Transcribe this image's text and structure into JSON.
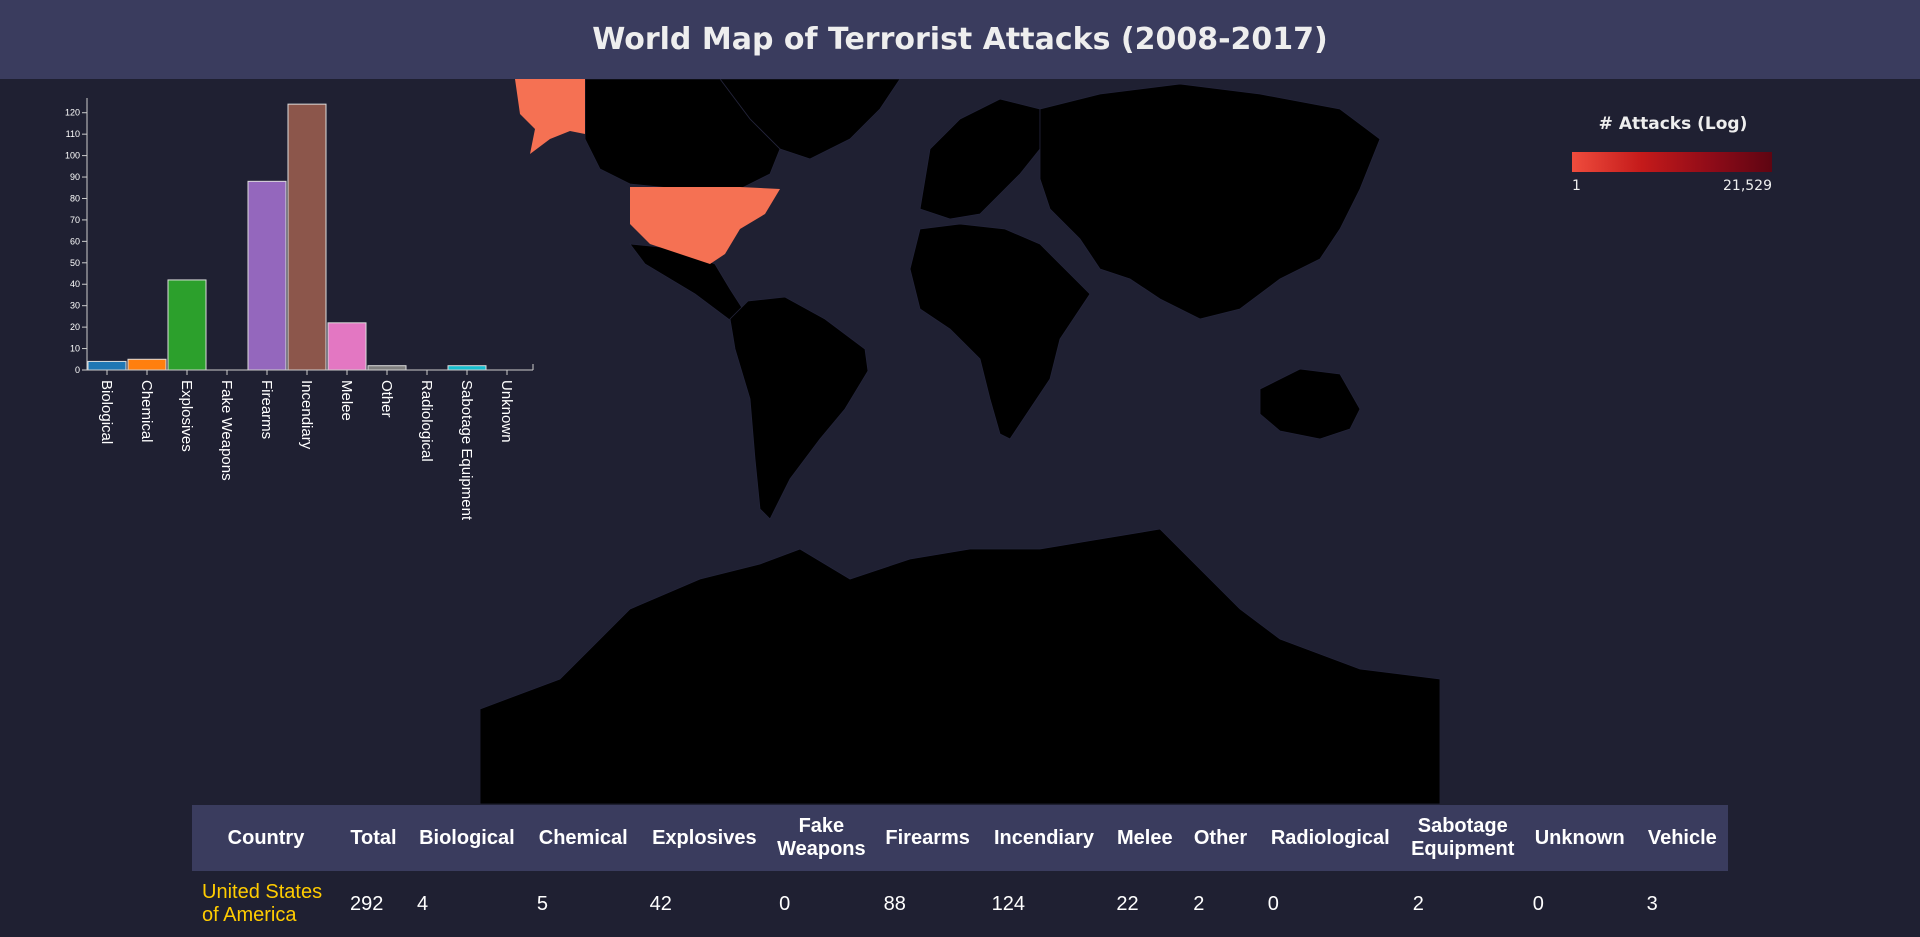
{
  "header": {
    "title": "World Map of Terrorist Attacks (2008-2017)"
  },
  "legend": {
    "title": "# Attacks (Log)",
    "min_label": "1",
    "max_label": "21,529",
    "colors": [
      "#ef4c3d",
      "#c41a1a",
      "#8e0b18",
      "#5e0512"
    ]
  },
  "map": {
    "land_color": "#000000",
    "highlight_color": "#f57153",
    "highlighted_country": "United States of America"
  },
  "chart_data": {
    "type": "bar",
    "categories": [
      "Biological",
      "Chemical",
      "Explosives",
      "Fake Weapons",
      "Firearms",
      "Incendiary",
      "Melee",
      "Other",
      "Radiological",
      "Sabotage Equipment",
      "Unknown"
    ],
    "values": [
      4,
      5,
      42,
      0,
      88,
      124,
      22,
      2,
      0,
      2,
      0
    ],
    "colors": [
      "#1f77b4",
      "#ff7f0e",
      "#2ca02c",
      "#d62728",
      "#9467bd",
      "#8c564b",
      "#e377c2",
      "#7f7f7f",
      "#bcbd22",
      "#17becf",
      "#1f77b4"
    ],
    "ylim": [
      0,
      125
    ],
    "yticks": [
      0,
      10,
      20,
      30,
      40,
      50,
      60,
      70,
      80,
      90,
      100,
      110,
      120
    ],
    "title": "",
    "xlabel": "",
    "ylabel": ""
  },
  "table": {
    "headers": [
      "Country",
      "Total",
      "Biological",
      "Chemical",
      "Explosives",
      "Fake Weapons",
      "Firearms",
      "Incendiary",
      "Melee",
      "Other",
      "Radiological",
      "Sabotage Equipment",
      "Unknown",
      "Vehicle"
    ],
    "rows": [
      [
        "United States of America",
        "292",
        "4",
        "5",
        "42",
        "0",
        "88",
        "124",
        "22",
        "2",
        "0",
        "2",
        "0",
        "3"
      ]
    ]
  }
}
